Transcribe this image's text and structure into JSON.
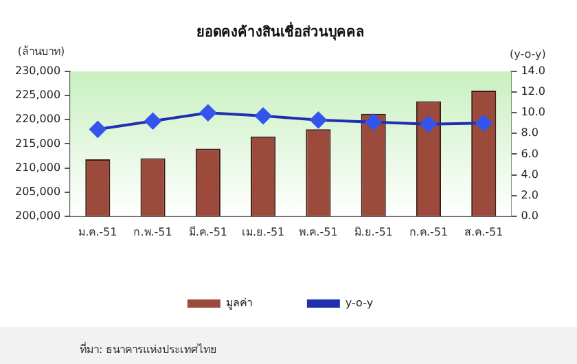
{
  "chart_data": {
    "type": "bar",
    "title": "ยอดคงค้างสินเชื่อส่วนบุคคล",
    "ylabel": "(ล้านบาท)",
    "y2label": "(y-o-y)",
    "categories": [
      "ม.ค.-51",
      "ก.พ.-51",
      "มี.ค.-51",
      "เม.ย.-51",
      "พ.ค.-51",
      "มิ.ย.-51",
      "ก.ค.-51",
      "ส.ค.-51"
    ],
    "series": [
      {
        "name": "มูลค่า",
        "color": "#9c4a3c",
        "values": [
          211800,
          212000,
          214000,
          216500,
          218000,
          221200,
          223800,
          226000
        ]
      },
      {
        "name": "y-o-y",
        "type": "line",
        "axis": "y2",
        "color": "#1f2fb0",
        "marker": "diamond",
        "values": [
          8.4,
          9.2,
          10.0,
          9.7,
          9.3,
          9.1,
          8.9,
          9.0
        ]
      }
    ],
    "ylim": [
      200000,
      230000
    ],
    "yticks": [
      {
        "value": 200000,
        "label": "200,000"
      },
      {
        "value": 205000,
        "label": "205,000"
      },
      {
        "value": 210000,
        "label": "210,000"
      },
      {
        "value": 215000,
        "label": "215,000"
      },
      {
        "value": 220000,
        "label": "220,000"
      },
      {
        "value": 225000,
        "label": "225,000"
      },
      {
        "value": 230000,
        "label": "230,000"
      }
    ],
    "y2lim": [
      0,
      14
    ],
    "y2ticks": [
      {
        "value": 0,
        "label": "0.0"
      },
      {
        "value": 2,
        "label": "2.0"
      },
      {
        "value": 4,
        "label": "4.0"
      },
      {
        "value": 6,
        "label": "6.0"
      },
      {
        "value": 8,
        "label": "8.0"
      },
      {
        "value": 10,
        "label": "10.0"
      },
      {
        "value": 12,
        "label": "12.0"
      },
      {
        "value": 14,
        "label": "14.0"
      }
    ],
    "legend": "bottom",
    "grid": false,
    "annotations": [
      "ที่มา: ธนาคารแห่งประเทศไทย"
    ]
  }
}
